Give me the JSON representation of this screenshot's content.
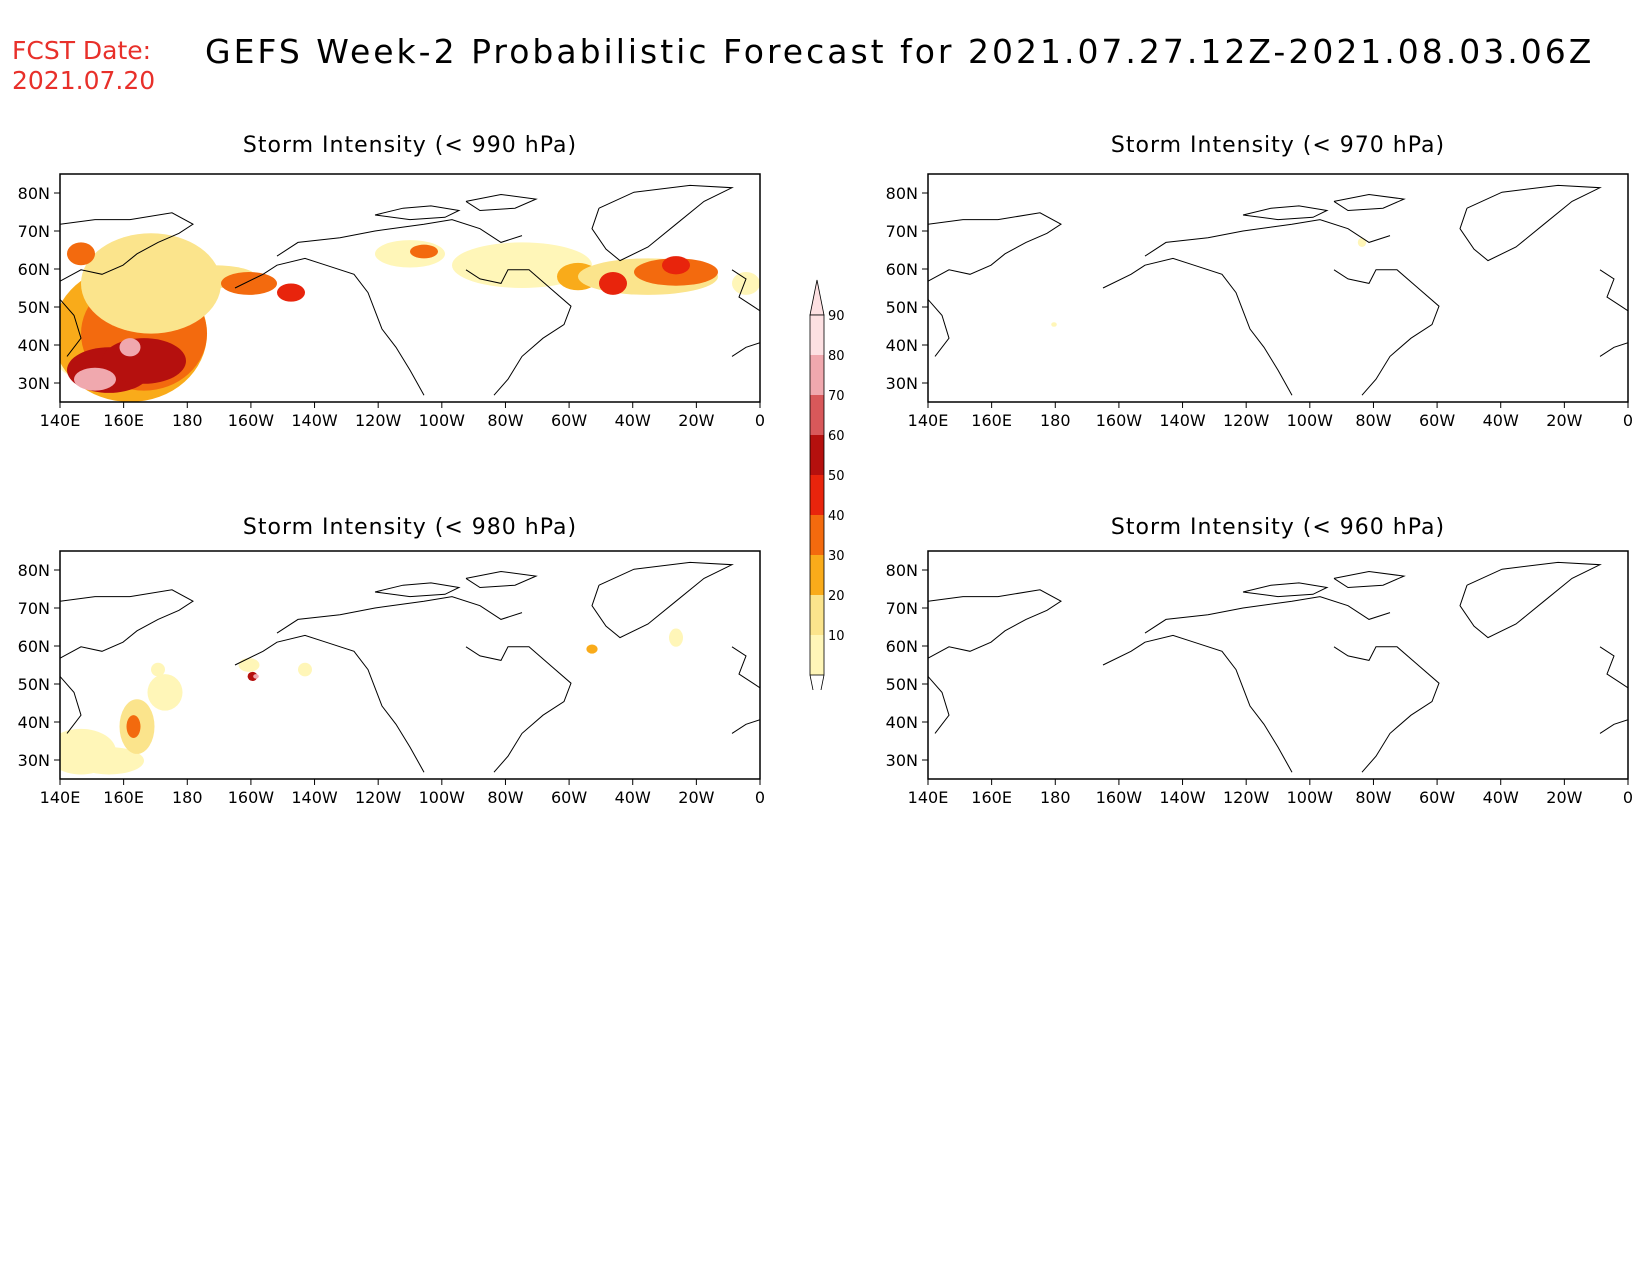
{
  "header": {
    "fcst_label": "FCST Date:",
    "fcst_date": "2021.07.20",
    "title": "GEFS Week-2 Probabilistic Forecast for 2021.07.27.12Z-2021.08.03.06Z"
  },
  "axes": {
    "lon_ticks": [
      "140E",
      "160E",
      "180",
      "160W",
      "140W",
      "120W",
      "100W",
      "80W",
      "60W",
      "40W",
      "20W",
      "0"
    ],
    "lat_ticks": [
      "80N",
      "70N",
      "60N",
      "50N",
      "40N",
      "30N"
    ]
  },
  "panels": [
    {
      "id": "p990",
      "title": "Storm Intensity (< 990 hPa)"
    },
    {
      "id": "p970",
      "title": "Storm Intensity (< 970 hPa)"
    },
    {
      "id": "p980",
      "title": "Storm Intensity (< 980 hPa)"
    },
    {
      "id": "p960",
      "title": "Storm Intensity (< 960 hPa)"
    }
  ],
  "colorbar": {
    "levels": [
      "10",
      "20",
      "30",
      "40",
      "50",
      "60",
      "70",
      "80",
      "90"
    ],
    "colors": [
      "#fff6b8",
      "#fbe48c",
      "#f9ab1a",
      "#f36a0e",
      "#e8240c",
      "#b5100e",
      "#d8585a",
      "#f0a8ae",
      "#fde0e2"
    ]
  }
}
